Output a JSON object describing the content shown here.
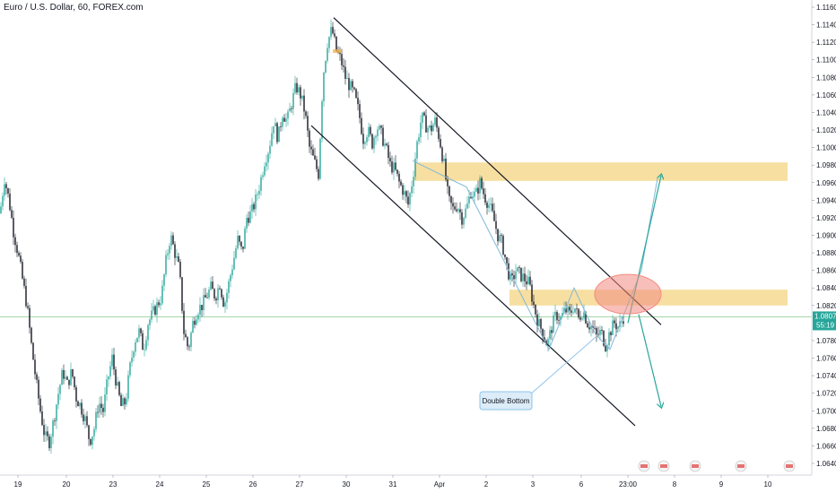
{
  "header": {
    "title": "Euro / U.S. Dollar, 60, FOREX.com"
  },
  "chart_data": {
    "type": "candlestick",
    "symbol": "Euro / U.S. Dollar",
    "interval": "60",
    "source": "FOREX.com",
    "x_tick_labels": [
      "19",
      "20",
      "23",
      "24",
      "25",
      "26",
      "27",
      "30",
      "31",
      "Apr",
      "2",
      "3",
      "6",
      "23:00",
      "8",
      "9",
      "10"
    ],
    "y_tick_labels": [
      "1.11600",
      "1.11400",
      "1.11200",
      "1.11000",
      "1.10800",
      "1.10600",
      "1.10400",
      "1.10200",
      "1.10000",
      "1.09800",
      "1.09600",
      "1.09400",
      "1.09200",
      "1.09000",
      "1.08800",
      "1.08600",
      "1.08400",
      "1.08200",
      "1.08071",
      "1.07800",
      "1.07600",
      "1.07400",
      "1.07200",
      "1.07000",
      "1.06800",
      "1.06600",
      "1.06400"
    ],
    "ylim": [
      1.0635,
      1.1165
    ],
    "current_price": {
      "value": "1.08071",
      "countdown": "55:19",
      "color": "#26a69a"
    },
    "close_path": [
      [
        0,
        1.0925
      ],
      [
        5,
        1.0965
      ],
      [
        10,
        1.094
      ],
      [
        15,
        1.0905
      ],
      [
        20,
        1.088
      ],
      [
        25,
        1.085
      ],
      [
        30,
        1.082
      ],
      [
        35,
        1.0775
      ],
      [
        40,
        1.0735
      ],
      [
        45,
        1.07
      ],
      [
        50,
        1.067
      ],
      [
        55,
        1.0665
      ],
      [
        60,
        1.069
      ],
      [
        65,
        1.072
      ],
      [
        70,
        1.0745
      ],
      [
        75,
        1.073
      ],
      [
        80,
        1.0745
      ],
      [
        85,
        1.0715
      ],
      [
        90,
        1.0705
      ],
      [
        95,
        1.069
      ],
      [
        100,
        1.0665
      ],
      [
        105,
        1.068
      ],
      [
        110,
        1.071
      ],
      [
        115,
        1.07
      ],
      [
        120,
        1.0735
      ],
      [
        125,
        1.076
      ],
      [
        130,
        1.073
      ],
      [
        135,
        1.0705
      ],
      [
        140,
        1.071
      ],
      [
        145,
        1.075
      ],
      [
        150,
        1.078
      ],
      [
        155,
        1.079
      ],
      [
        160,
        1.077
      ],
      [
        165,
        1.08
      ],
      [
        170,
        1.081
      ],
      [
        175,
        1.082
      ],
      [
        180,
        1.083
      ],
      [
        185,
        1.087
      ],
      [
        190,
        1.09
      ],
      [
        195,
        1.088
      ],
      [
        200,
        1.086
      ],
      [
        205,
        1.079
      ],
      [
        210,
        1.077
      ],
      [
        215,
        1.08
      ],
      [
        220,
        1.0815
      ],
      [
        225,
        1.082
      ],
      [
        230,
        1.083
      ],
      [
        235,
        1.084
      ],
      [
        240,
        1.083
      ],
      [
        245,
        1.0845
      ],
      [
        250,
        1.082
      ],
      [
        255,
        1.0845
      ],
      [
        260,
        1.087
      ],
      [
        265,
        1.0895
      ],
      [
        270,
        1.088
      ],
      [
        275,
        1.092
      ],
      [
        280,
        1.0925
      ],
      [
        285,
        1.094
      ],
      [
        290,
        1.096
      ],
      [
        295,
        1.0985
      ],
      [
        300,
        1.1
      ],
      [
        305,
        1.103
      ],
      [
        310,
        1.101
      ],
      [
        315,
        1.104
      ],
      [
        320,
        1.103
      ],
      [
        325,
        1.105
      ],
      [
        330,
        1.107
      ],
      [
        335,
        1.106
      ],
      [
        340,
        1.104
      ],
      [
        345,
        1.1
      ],
      [
        350,
        1.0985
      ],
      [
        355,
        1.097
      ],
      [
        360,
        1.108
      ],
      [
        365,
        1.112
      ],
      [
        370,
        1.1135
      ],
      [
        375,
        1.111
      ],
      [
        380,
        1.11
      ],
      [
        385,
        1.108
      ],
      [
        390,
        1.107
      ],
      [
        395,
        1.106
      ],
      [
        400,
        1.104
      ],
      [
        405,
        1.101
      ],
      [
        410,
        1.102
      ],
      [
        415,
        1.1005
      ],
      [
        420,
        1.1025
      ],
      [
        425,
        1.1015
      ],
      [
        430,
        1.1
      ],
      [
        435,
        1.098
      ],
      [
        440,
        1.0975
      ],
      [
        445,
        1.096
      ],
      [
        450,
        1.095
      ],
      [
        455,
        1.0935
      ],
      [
        460,
        1.0965
      ],
      [
        465,
        1.1005
      ],
      [
        470,
        1.1035
      ],
      [
        475,
        1.1025
      ],
      [
        480,
        1.102
      ],
      [
        485,
        1.103
      ],
      [
        490,
        1.101
      ],
      [
        495,
        1.098
      ],
      [
        500,
        1.094
      ],
      [
        505,
        1.093
      ],
      [
        510,
        1.0935
      ],
      [
        515,
        1.092
      ],
      [
        520,
        1.093
      ],
      [
        525,
        1.095
      ],
      [
        530,
        1.0945
      ],
      [
        535,
        1.096
      ],
      [
        540,
        1.0945
      ],
      [
        545,
        1.0935
      ],
      [
        550,
        1.092
      ],
      [
        555,
        1.09
      ],
      [
        560,
        1.089
      ],
      [
        565,
        1.0865
      ],
      [
        570,
        1.0845
      ],
      [
        575,
        1.086
      ],
      [
        580,
        1.0855
      ],
      [
        585,
        1.085
      ],
      [
        590,
        1.0845
      ],
      [
        595,
        1.082
      ],
      [
        600,
        1.08
      ],
      [
        605,
        1.079
      ],
      [
        610,
        1.0775
      ],
      [
        615,
        1.0795
      ],
      [
        620,
        1.081
      ],
      [
        625,
        1.0805
      ],
      [
        630,
        1.0815
      ],
      [
        635,
        1.081
      ],
      [
        640,
        1.082
      ],
      [
        645,
        1.0805
      ],
      [
        650,
        1.0815
      ],
      [
        655,
        1.08
      ],
      [
        660,
        1.0795
      ],
      [
        665,
        1.0785
      ],
      [
        670,
        1.079
      ],
      [
        675,
        1.0775
      ],
      [
        680,
        1.079
      ],
      [
        685,
        1.08
      ],
      [
        690,
        1.0795
      ],
      [
        695,
        1.0807
      ]
    ],
    "zones": [
      {
        "name": "upper-resistance-zone",
        "from": 1.0962,
        "to": 1.0983,
        "color": "#f5d78a"
      },
      {
        "name": "lower-resistance-zone",
        "from": 1.082,
        "to": 1.0838,
        "color": "#f5d78a"
      }
    ],
    "channel": {
      "upper": [
        [
          372,
          1.1148
        ],
        [
          737,
          1.0798
        ]
      ],
      "lower": [
        [
          347,
          1.1025
        ],
        [
          708,
          1.0683
        ]
      ]
    },
    "projection_path": [
      [
        460,
        1.0985
      ],
      [
        520,
        1.0955
      ],
      [
        612,
        1.077
      ],
      [
        640,
        1.084
      ],
      [
        664,
        1.0787
      ],
      [
        680,
        1.077
      ],
      [
        715,
        1.086
      ],
      [
        733,
        1.0965
      ]
    ],
    "arrows": [
      {
        "from": [
          700,
          1.08
        ],
        "to": [
          737,
          1.0968
        ],
        "direction": "up"
      },
      {
        "from": [
          712,
          1.081
        ],
        "to": [
          737,
          1.0705
        ],
        "direction": "down"
      }
    ],
    "highlight_ellipse": {
      "x_center": 700,
      "price_center": 1.0833,
      "color": "#f28b82"
    },
    "annotations": [
      {
        "text": "Double Bottom",
        "color": "#8ec3ea"
      }
    ],
    "colors": {
      "up": "#26a69a",
      "down": "#131722",
      "price_line": "#4caf50"
    }
  }
}
